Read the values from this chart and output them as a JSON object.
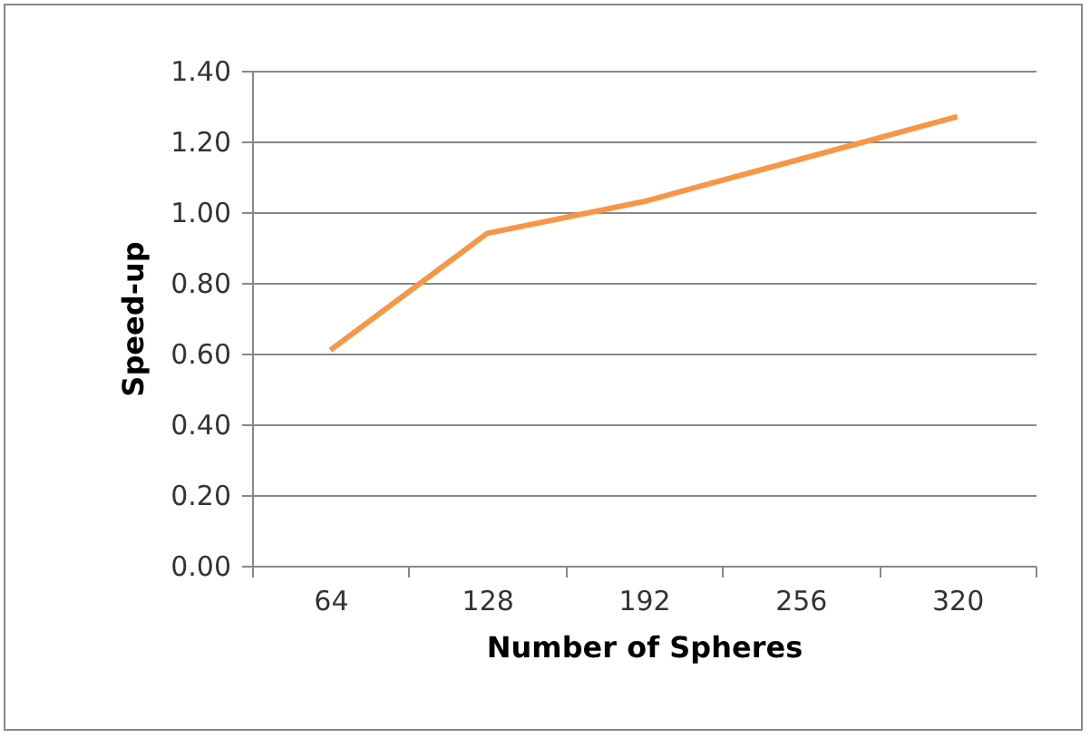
{
  "chart_data": {
    "type": "line",
    "xlabel": "Number of Spheres",
    "ylabel": "Speed-up",
    "categories": [
      "64",
      "128",
      "192",
      "256",
      "320"
    ],
    "series": [
      {
        "color": "#f79646",
        "values": [
          0.61,
          0.94,
          1.03,
          1.15,
          1.27
        ]
      }
    ],
    "ylim": [
      0,
      1.4
    ],
    "yticks": [
      {
        "value": 0,
        "label": "0.00"
      },
      {
        "value": 0.2,
        "label": "0.20"
      },
      {
        "value": 0.4,
        "label": "0.40"
      },
      {
        "value": 0.6,
        "label": "0.60"
      },
      {
        "value": 0.8,
        "label": "0.80"
      },
      {
        "value": 1,
        "label": "1.00"
      },
      {
        "value": 1.2,
        "label": "1.20"
      },
      {
        "value": 1.4,
        "label": "1.40"
      }
    ],
    "grid": "y",
    "marker": "none",
    "line_style": "solid"
  }
}
